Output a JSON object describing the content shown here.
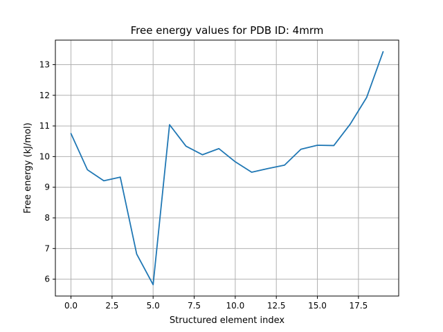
{
  "chart_data": {
    "type": "line",
    "title": "Free energy values for PDB ID: 4mrm",
    "xlabel": "Structured element index",
    "ylabel": "Free energy (kJ/mol)",
    "xlim": [
      -0.95,
      19.95
    ],
    "ylim": [
      5.45,
      13.8
    ],
    "xticks": [
      0.0,
      2.5,
      5.0,
      7.5,
      10.0,
      12.5,
      15.0,
      17.5
    ],
    "xtick_labels": [
      "0.0",
      "2.5",
      "5.0",
      "7.5",
      "10.0",
      "12.5",
      "15.0",
      "17.5"
    ],
    "yticks": [
      6,
      7,
      8,
      9,
      10,
      11,
      12,
      13
    ],
    "ytick_labels": [
      "6",
      "7",
      "8",
      "9",
      "10",
      "11",
      "12",
      "13"
    ],
    "grid": true,
    "series": [
      {
        "color": "#1f77b4",
        "x": [
          0,
          1,
          2,
          3,
          4,
          5,
          6,
          7,
          8,
          9,
          10,
          11,
          12,
          13,
          14,
          15,
          16,
          17,
          18,
          19
        ],
        "y": [
          10.75,
          9.57,
          9.21,
          9.33,
          6.82,
          5.82,
          11.04,
          10.34,
          10.06,
          10.26,
          9.83,
          9.49,
          9.61,
          9.72,
          10.24,
          10.37,
          10.36,
          11.06,
          11.93,
          13.42
        ]
      }
    ]
  }
}
